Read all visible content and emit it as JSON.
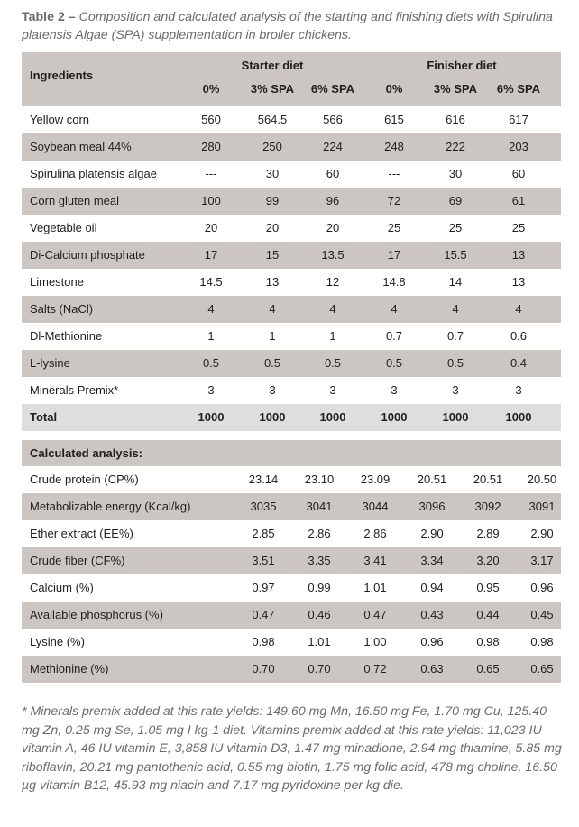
{
  "caption": {
    "label": "Table 2 –",
    "text": "Composition and calculated analysis of the starting and finishing diets with Spirulina platensis Algae (SPA) supplementation in broiler chickens."
  },
  "table": {
    "ingredients_header": "Ingredients",
    "groups": [
      "Starter diet",
      "Finisher diet"
    ],
    "subheaders": [
      "0%",
      "3% SPA",
      "6% SPA",
      "0%",
      "3% SPA",
      "6% SPA"
    ],
    "rows": [
      {
        "label": "Yellow corn",
        "values": [
          "560",
          "564.5",
          "566",
          "615",
          "616",
          "617"
        ]
      },
      {
        "label": "Soybean meal 44%",
        "values": [
          "280",
          "250",
          "224",
          "248",
          "222",
          "203"
        ]
      },
      {
        "label": "Spirulina platensis algae",
        "values": [
          "---",
          "30",
          "60",
          "---",
          "30",
          "60"
        ]
      },
      {
        "label": "Corn gluten meal",
        "values": [
          "100",
          "99",
          "96",
          "72",
          "69",
          "61"
        ]
      },
      {
        "label": "Vegetable oil",
        "values": [
          "20",
          "20",
          "20",
          "25",
          "25",
          "25"
        ]
      },
      {
        "label": "Di-Calcium phosphate",
        "values": [
          "17",
          "15",
          "13.5",
          "17",
          "15.5",
          "13"
        ]
      },
      {
        "label": "Limestone",
        "values": [
          "14.5",
          "13",
          "12",
          "14.8",
          "14",
          "13"
        ]
      },
      {
        "label": "Salts (NaCl)",
        "values": [
          "4",
          "4",
          "4",
          "4",
          "4",
          "4"
        ]
      },
      {
        "label": "Dl-Methionine",
        "values": [
          "1",
          "1",
          "1",
          "0.7",
          "0.7",
          "0.6"
        ]
      },
      {
        "label": "L-lysine",
        "values": [
          "0.5",
          "0.5",
          "0.5",
          "0.5",
          "0.5",
          "0.4"
        ]
      },
      {
        "label": "Minerals Premix*",
        "values": [
          "3",
          "3",
          "3",
          "3",
          "3",
          "3"
        ]
      }
    ],
    "total": {
      "label": "Total",
      "values": [
        "1000",
        "1000",
        "1000",
        "1000",
        "1000",
        "1000"
      ]
    },
    "analysis_header": "Calculated analysis:",
    "analysis_rows": [
      {
        "label": "Crude protein (CP%)",
        "values": [
          "23.14",
          "23.10",
          "23.09",
          "20.51",
          "20.51",
          "20.50"
        ]
      },
      {
        "label": "Metabolizable energy (Kcal/kg)",
        "values": [
          "3035",
          "3041",
          "3044",
          "3096",
          "3092",
          "3091"
        ]
      },
      {
        "label": "Ether extract (EE%)",
        "values": [
          "2.85",
          "2.86",
          "2.86",
          "2.90",
          "2.89",
          "2.90"
        ]
      },
      {
        "label": "Crude fiber (CF%)",
        "values": [
          "3.51",
          "3.35",
          "3.41",
          "3.34",
          "3.20",
          "3.17"
        ]
      },
      {
        "label": "Calcium (%)",
        "values": [
          "0.97",
          "0.99",
          "1.01",
          "0.94",
          "0.95",
          "0.96"
        ]
      },
      {
        "label": "Available phosphorus (%)",
        "values": [
          "0.47",
          "0.46",
          "0.47",
          "0.43",
          "0.44",
          "0.45"
        ]
      },
      {
        "label": "Lysine (%)",
        "values": [
          "0.98",
          "1.01",
          "1.00",
          "0.96",
          "0.98",
          "0.98"
        ]
      },
      {
        "label": "Methionine (%)",
        "values": [
          "0.70",
          "0.70",
          "0.72",
          "0.63",
          "0.65",
          "0.65"
        ]
      }
    ]
  },
  "footnote": "* Minerals premix added at this rate yields: 149.60 mg Mn, 16.50 mg Fe, 1.70 mg Cu, 125.40 mg Zn, 0.25 mg Se, 1.05  mg I kg-1 diet. Vitamins premix added at this rate yields: 11,023 IU vitamin A, 46 IU vitamin E, 3,858 IU vitamin D3, 1.47 mg minadione, 2.94 mg thiamine, 5.85 mg riboflavin, 20.21 mg pantothenic acid, 0.55 mg biotin, 1.75 mg folic acid, 478 mg choline, 16.50 µg vitamin B12, 45.93 mg niacin and 7.17 mg pyridoxine per kg die.",
  "colors": {
    "band": "#cbc6c2",
    "total_row": "#dedede",
    "caption_text": "#6b6b6b"
  }
}
